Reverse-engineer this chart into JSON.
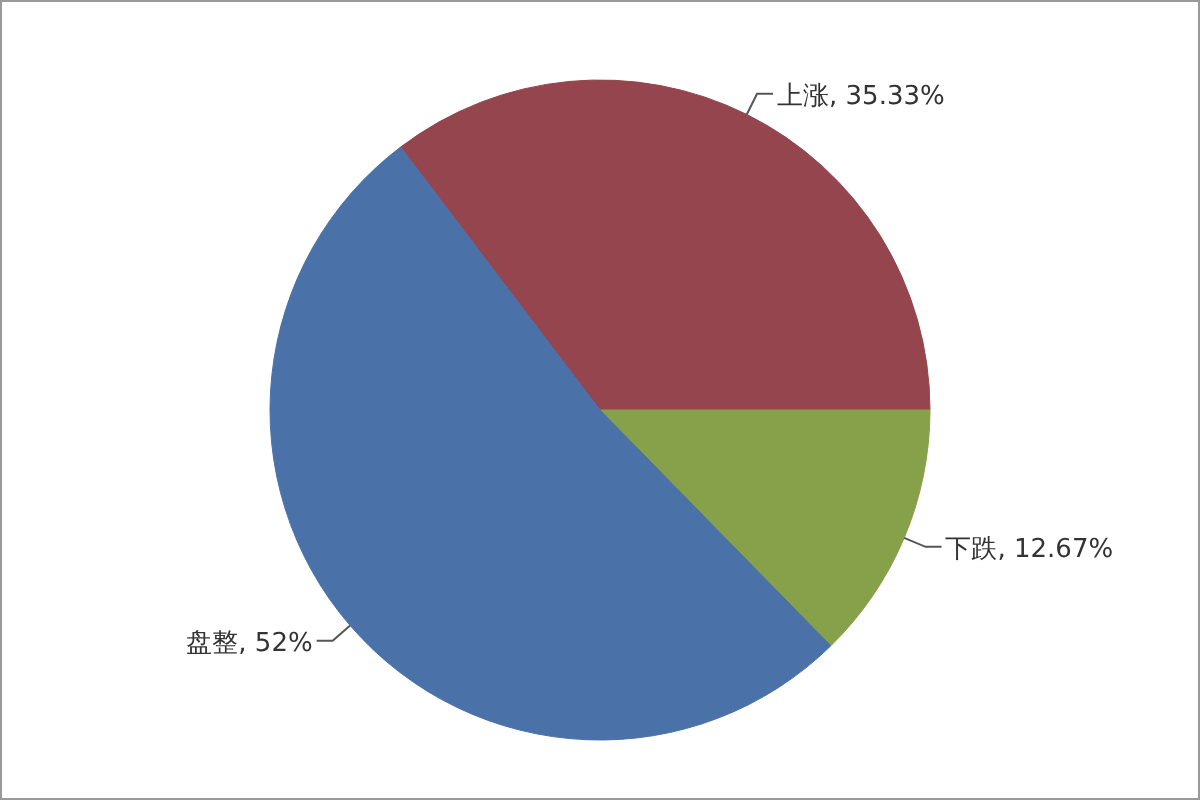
{
  "chart_data": {
    "type": "pie",
    "categories": [
      "上涨",
      "下跌",
      "盘整"
    ],
    "values": [
      35.33,
      12.67,
      52
    ],
    "colors": [
      "#94454d",
      "#87a04a",
      "#4a72a8"
    ],
    "value_labels": [
      ", 35.33%",
      ", 12.67%",
      ", 52%"
    ]
  }
}
